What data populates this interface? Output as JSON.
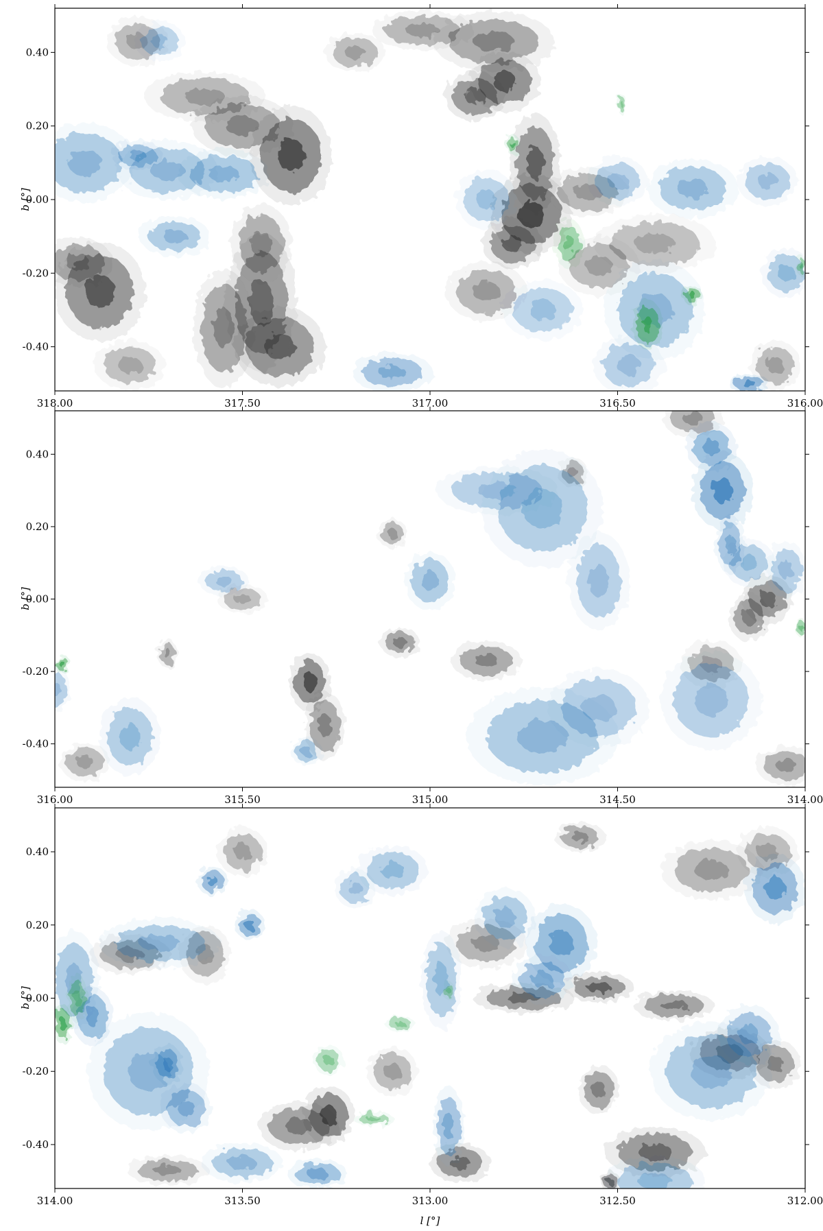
{
  "figure": {
    "xlabel": "l [°]",
    "ylabel": "b [°]"
  },
  "colors": {
    "gray": "#2b2b2b",
    "blue": "#1f6fb4",
    "green": "#1e9a3a"
  },
  "chart_data": [
    {
      "type": "heatmap",
      "xlim": [
        318.0,
        316.0
      ],
      "ylim": [
        -0.52,
        0.52
      ],
      "xticks": [
        "318.00",
        "317.50",
        "317.00",
        "316.50",
        "316.00"
      ],
      "yticks": [
        "0.40",
        "0.20",
        "0.00",
        "-0.20",
        "-0.40"
      ],
      "xlabel": "",
      "ylabel": "b [°]",
      "series": [
        {
          "name": "",
          "layer": "gray",
          "blobs": [
            [
              317.88,
              -0.25,
              0.09,
              0.1,
              0.85
            ],
            [
              317.94,
              -0.17,
              0.07,
              0.05,
              0.55
            ],
            [
              317.45,
              -0.28,
              0.07,
              0.14,
              0.75
            ],
            [
              317.4,
              -0.4,
              0.09,
              0.08,
              0.8
            ],
            [
              317.55,
              -0.35,
              0.06,
              0.12,
              0.55
            ],
            [
              317.45,
              -0.12,
              0.06,
              0.08,
              0.5
            ],
            [
              317.37,
              0.12,
              0.08,
              0.1,
              0.95
            ],
            [
              317.5,
              0.2,
              0.1,
              0.06,
              0.55
            ],
            [
              317.6,
              0.28,
              0.12,
              0.05,
              0.4
            ],
            [
              316.8,
              0.32,
              0.07,
              0.06,
              0.9
            ],
            [
              316.88,
              0.28,
              0.06,
              0.05,
              0.75
            ],
            [
              316.83,
              0.43,
              0.12,
              0.06,
              0.55
            ],
            [
              317.02,
              0.46,
              0.1,
              0.04,
              0.4
            ],
            [
              316.73,
              -0.04,
              0.08,
              0.08,
              1.0
            ],
            [
              316.72,
              0.1,
              0.05,
              0.1,
              0.8
            ],
            [
              316.78,
              -0.12,
              0.06,
              0.05,
              0.8
            ],
            [
              316.58,
              0.02,
              0.08,
              0.05,
              0.4
            ],
            [
              316.55,
              -0.18,
              0.08,
              0.06,
              0.35
            ],
            [
              316.85,
              -0.25,
              0.08,
              0.06,
              0.4
            ],
            [
              317.78,
              0.43,
              0.06,
              0.05,
              0.35
            ],
            [
              317.2,
              0.4,
              0.06,
              0.04,
              0.35
            ],
            [
              316.4,
              -0.12,
              0.12,
              0.06,
              0.3
            ],
            [
              316.08,
              -0.45,
              0.05,
              0.05,
              0.35
            ],
            [
              317.8,
              -0.45,
              0.07,
              0.05,
              0.3
            ]
          ]
        },
        {
          "name": "",
          "layer": "blue",
          "blobs": [
            [
              317.92,
              0.1,
              0.1,
              0.08,
              0.45
            ],
            [
              317.78,
              0.12,
              0.05,
              0.03,
              0.55
            ],
            [
              317.7,
              0.08,
              0.1,
              0.06,
              0.45
            ],
            [
              317.55,
              0.07,
              0.09,
              0.05,
              0.5
            ],
            [
              317.72,
              0.43,
              0.05,
              0.04,
              0.3
            ],
            [
              317.68,
              -0.1,
              0.07,
              0.04,
              0.45
            ],
            [
              317.1,
              -0.47,
              0.08,
              0.04,
              0.55
            ],
            [
              316.5,
              0.05,
              0.06,
              0.05,
              0.35
            ],
            [
              316.3,
              0.03,
              0.09,
              0.06,
              0.45
            ],
            [
              316.1,
              0.05,
              0.06,
              0.05,
              0.35
            ],
            [
              316.4,
              -0.3,
              0.1,
              0.1,
              0.45
            ],
            [
              316.47,
              -0.45,
              0.07,
              0.06,
              0.35
            ],
            [
              316.85,
              0.0,
              0.06,
              0.06,
              0.3
            ],
            [
              316.05,
              -0.2,
              0.05,
              0.05,
              0.4
            ],
            [
              316.15,
              -0.5,
              0.04,
              0.02,
              0.85
            ],
            [
              316.7,
              -0.3,
              0.08,
              0.06,
              0.3
            ]
          ]
        },
        {
          "name": "",
          "layer": "green",
          "blobs": [
            [
              316.78,
              0.15,
              0.015,
              0.02,
              0.8
            ],
            [
              316.63,
              -0.12,
              0.03,
              0.05,
              0.6
            ],
            [
              316.42,
              -0.34,
              0.03,
              0.05,
              0.85
            ],
            [
              316.3,
              -0.26,
              0.02,
              0.02,
              0.9
            ],
            [
              316.49,
              0.26,
              0.01,
              0.02,
              0.5
            ],
            [
              316.01,
              -0.18,
              0.01,
              0.02,
              0.6
            ]
          ]
        }
      ]
    },
    {
      "type": "heatmap",
      "xlim": [
        316.0,
        314.0
      ],
      "ylim": [
        -0.52,
        0.52
      ],
      "xticks": [
        "316.00",
        "315.50",
        "315.00",
        "314.50",
        "314.00"
      ],
      "yticks": [
        "0.40",
        "0.20",
        "0.00",
        "-0.20",
        "-0.40"
      ],
      "xlabel": "",
      "ylabel": "b [°]",
      "series": [
        {
          "name": "",
          "layer": "gray",
          "blobs": [
            [
              315.32,
              -0.23,
              0.04,
              0.06,
              0.95
            ],
            [
              315.28,
              -0.35,
              0.04,
              0.07,
              0.55
            ],
            [
              314.85,
              -0.17,
              0.07,
              0.04,
              0.55
            ],
            [
              315.08,
              -0.12,
              0.04,
              0.03,
              0.6
            ],
            [
              314.1,
              0.0,
              0.05,
              0.05,
              0.75
            ],
            [
              314.15,
              -0.05,
              0.04,
              0.05,
              0.6
            ],
            [
              314.05,
              -0.46,
              0.06,
              0.04,
              0.45
            ],
            [
              315.7,
              -0.15,
              0.02,
              0.03,
              0.45
            ],
            [
              315.1,
              0.18,
              0.03,
              0.03,
              0.4
            ],
            [
              314.62,
              0.35,
              0.03,
              0.03,
              0.4
            ],
            [
              315.92,
              -0.45,
              0.05,
              0.04,
              0.35
            ],
            [
              314.25,
              -0.18,
              0.06,
              0.05,
              0.35
            ],
            [
              315.5,
              0.0,
              0.05,
              0.03,
              0.3
            ],
            [
              314.3,
              0.5,
              0.06,
              0.04,
              0.45
            ]
          ]
        },
        {
          "name": "",
          "layer": "blue",
          "blobs": [
            [
              314.22,
              0.3,
              0.06,
              0.08,
              0.9
            ],
            [
              314.25,
              0.42,
              0.05,
              0.05,
              0.65
            ],
            [
              314.2,
              0.15,
              0.03,
              0.06,
              0.55
            ],
            [
              314.7,
              0.25,
              0.12,
              0.12,
              0.4
            ],
            [
              315.0,
              0.05,
              0.05,
              0.06,
              0.45
            ],
            [
              314.82,
              0.3,
              0.12,
              0.05,
              0.35
            ],
            [
              314.7,
              -0.38,
              0.15,
              0.1,
              0.45
            ],
            [
              314.55,
              -0.3,
              0.1,
              0.08,
              0.35
            ],
            [
              314.25,
              -0.28,
              0.1,
              0.1,
              0.35
            ],
            [
              315.8,
              -0.38,
              0.06,
              0.08,
              0.4
            ],
            [
              315.33,
              -0.42,
              0.03,
              0.03,
              0.45
            ],
            [
              314.15,
              0.1,
              0.05,
              0.05,
              0.4
            ],
            [
              314.05,
              0.08,
              0.04,
              0.06,
              0.35
            ],
            [
              314.55,
              0.05,
              0.06,
              0.1,
              0.35
            ],
            [
              316.0,
              -0.25,
              0.03,
              0.05,
              0.35
            ],
            [
              315.55,
              0.05,
              0.05,
              0.03,
              0.35
            ]
          ]
        },
        {
          "name": "",
          "layer": "green",
          "blobs": [
            [
              315.98,
              -0.18,
              0.015,
              0.02,
              0.9
            ],
            [
              314.01,
              -0.08,
              0.01,
              0.02,
              0.6
            ]
          ]
        }
      ]
    },
    {
      "type": "heatmap",
      "xlim": [
        314.0,
        312.0
      ],
      "ylim": [
        -0.52,
        0.52
      ],
      "xticks": [
        "314.00",
        "313.50",
        "313.00",
        "312.50",
        "312.00"
      ],
      "yticks": [
        "0.40",
        "0.20",
        "0.00",
        "-0.20",
        "-0.40"
      ],
      "xlabel": "l [°]",
      "ylabel": "b [°]",
      "series": [
        {
          "name": "",
          "layer": "gray",
          "blobs": [
            [
              313.27,
              -0.32,
              0.05,
              0.06,
              0.95
            ],
            [
              313.35,
              -0.35,
              0.08,
              0.05,
              0.65
            ],
            [
              312.92,
              -0.45,
              0.06,
              0.04,
              0.75
            ],
            [
              312.75,
              0.0,
              0.1,
              0.03,
              0.75
            ],
            [
              312.55,
              0.03,
              0.07,
              0.03,
              0.8
            ],
            [
              312.35,
              -0.02,
              0.08,
              0.03,
              0.65
            ],
            [
              312.2,
              -0.15,
              0.08,
              0.05,
              0.65
            ],
            [
              312.08,
              -0.18,
              0.05,
              0.05,
              0.55
            ],
            [
              312.4,
              -0.42,
              0.1,
              0.05,
              0.75
            ],
            [
              312.55,
              -0.25,
              0.04,
              0.05,
              0.6
            ],
            [
              312.85,
              0.15,
              0.08,
              0.05,
              0.45
            ],
            [
              312.6,
              0.44,
              0.05,
              0.03,
              0.5
            ],
            [
              313.8,
              0.12,
              0.08,
              0.04,
              0.5
            ],
            [
              313.6,
              0.12,
              0.05,
              0.06,
              0.4
            ],
            [
              312.25,
              0.35,
              0.1,
              0.06,
              0.4
            ],
            [
              313.7,
              -0.47,
              0.08,
              0.03,
              0.45
            ],
            [
              313.1,
              -0.2,
              0.05,
              0.05,
              0.35
            ],
            [
              312.1,
              0.4,
              0.06,
              0.05,
              0.35
            ],
            [
              312.52,
              -0.5,
              0.02,
              0.02,
              0.8
            ],
            [
              313.5,
              0.4,
              0.05,
              0.05,
              0.35
            ]
          ]
        },
        {
          "name": "",
          "layer": "blue",
          "blobs": [
            [
              313.95,
              0.05,
              0.05,
              0.1,
              0.45
            ],
            [
              313.9,
              -0.05,
              0.04,
              0.06,
              0.65
            ],
            [
              313.75,
              -0.2,
              0.12,
              0.12,
              0.45
            ],
            [
              313.7,
              -0.18,
              0.03,
              0.04,
              0.75
            ],
            [
              313.65,
              -0.3,
              0.05,
              0.05,
              0.55
            ],
            [
              313.72,
              0.15,
              0.12,
              0.05,
              0.45
            ],
            [
              313.58,
              0.32,
              0.03,
              0.03,
              0.75
            ],
            [
              313.48,
              0.2,
              0.03,
              0.03,
              0.8
            ],
            [
              313.3,
              -0.48,
              0.06,
              0.03,
              0.6
            ],
            [
              313.5,
              -0.45,
              0.08,
              0.04,
              0.45
            ],
            [
              312.8,
              0.22,
              0.06,
              0.06,
              0.45
            ],
            [
              312.65,
              0.15,
              0.07,
              0.08,
              0.7
            ],
            [
              312.7,
              0.05,
              0.06,
              0.05,
              0.55
            ],
            [
              312.08,
              0.3,
              0.06,
              0.07,
              0.75
            ],
            [
              312.25,
              -0.2,
              0.12,
              0.1,
              0.45
            ],
            [
              312.15,
              -0.1,
              0.06,
              0.06,
              0.55
            ],
            [
              312.4,
              -0.5,
              0.1,
              0.05,
              0.4
            ],
            [
              312.95,
              -0.35,
              0.03,
              0.08,
              0.55
            ],
            [
              312.97,
              0.05,
              0.04,
              0.1,
              0.4
            ],
            [
              313.1,
              0.35,
              0.07,
              0.05,
              0.4
            ],
            [
              313.2,
              0.3,
              0.04,
              0.04,
              0.35
            ]
          ]
        },
        {
          "name": "",
          "layer": "green",
          "blobs": [
            [
              313.98,
              -0.07,
              0.02,
              0.04,
              0.85
            ],
            [
              313.94,
              0.0,
              0.02,
              0.05,
              0.5
            ],
            [
              313.08,
              -0.07,
              0.03,
              0.015,
              0.45
            ],
            [
              312.95,
              0.02,
              0.01,
              0.02,
              0.45
            ],
            [
              313.15,
              -0.33,
              0.04,
              0.015,
              0.5
            ],
            [
              313.27,
              -0.17,
              0.03,
              0.03,
              0.45
            ]
          ]
        }
      ]
    }
  ]
}
